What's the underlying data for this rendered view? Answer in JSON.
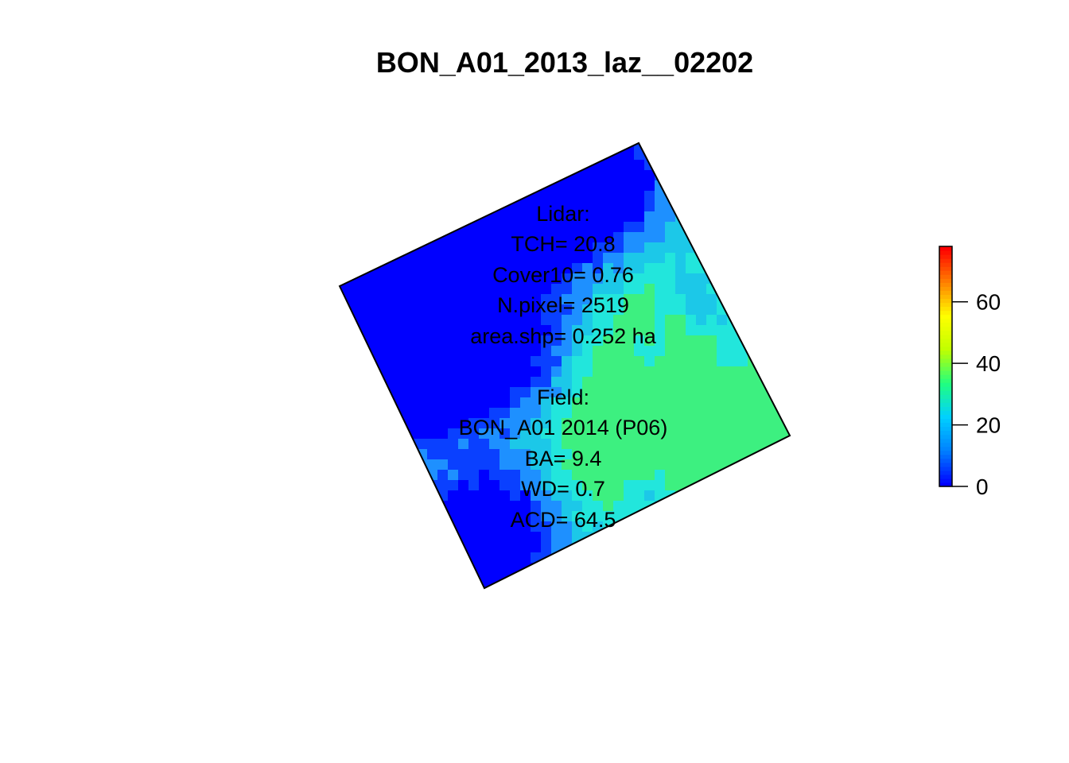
{
  "title": "BON_A01_2013_laz__02202",
  "lidar": {
    "header": "Lidar:",
    "tch": "TCH= 20.8",
    "cover": "Cover10= 0.76",
    "npixel": "N.pixel= 2519",
    "area": "area.shp= 0.252 ha"
  },
  "field": {
    "header": "Field:",
    "plot": "BON_A01 2014 (P06)",
    "ba": "BA= 9.4",
    "wd": "WD= 0.7",
    "acd": "ACD= 64.5"
  },
  "legend": {
    "ticks": [
      "0",
      "20",
      "40",
      "60"
    ],
    "tick_values": [
      0,
      20,
      40,
      60
    ],
    "range": [
      0,
      78
    ],
    "colors": [
      "#0000ff",
      "#0080ff",
      "#00d0ff",
      "#20ff80",
      "#c0ff00",
      "#ffff00",
      "#ff8000",
      "#ff0000"
    ]
  },
  "raster": {
    "value_range": [
      0,
      40
    ],
    "palette": {
      "low": "#0000ff",
      "mid": "#1e90ff",
      "high": "#22e6dc",
      "top": "#3df080"
    }
  }
}
